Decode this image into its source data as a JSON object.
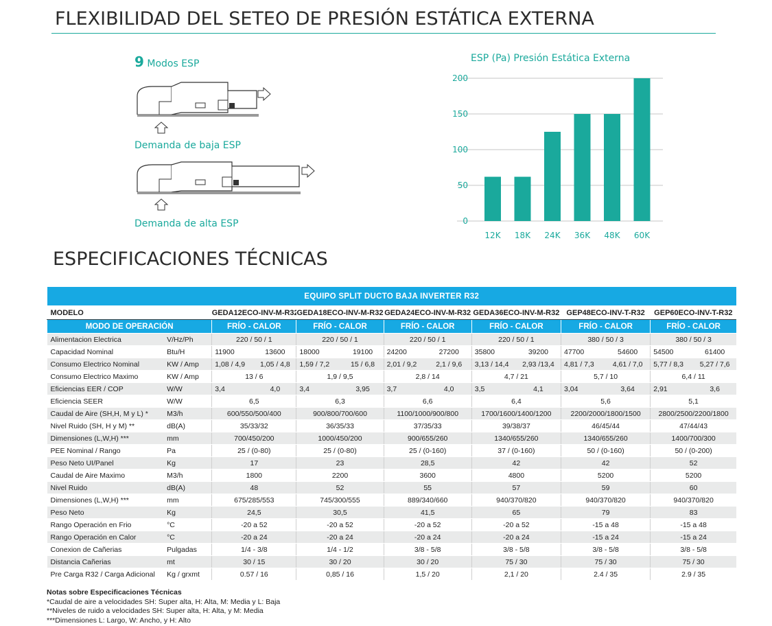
{
  "section1": {
    "title": "FLEXIBILIDAD DEL SETEO DE PRESIÓN ESTÁTICA EXTERNA"
  },
  "esp_modes": {
    "number": "9",
    "label": "Modos ESP"
  },
  "diagrams": {
    "low_caption": "Demanda de baja ESP",
    "high_caption": "Demanda de alta ESP",
    "airflow_icon": "arrow-outline-icon"
  },
  "colors": {
    "teal": "#1aa99c",
    "blue": "#17a9e3",
    "row_gray": "#e9eaea"
  },
  "chart_data": {
    "type": "bar",
    "title": "ESP (Pa)   Presión Estática Externa",
    "categories": [
      "12K",
      "18K",
      "24K",
      "36K",
      "48K",
      "60K"
    ],
    "values": [
      62,
      62,
      125,
      150,
      150,
      200
    ],
    "ylim": [
      0,
      200
    ],
    "yticks": [
      "0",
      "50",
      "100",
      "150",
      "200"
    ],
    "grid": true,
    "color": "#1aa99c"
  },
  "section2": {
    "title": "ESPECIFICACIONES TÉCNICAS"
  },
  "spec": {
    "table_title": "EQUIPO SPLIT DUCTO BAJA INVERTER R32",
    "model_label": "MODELO",
    "mode_label": "MODO DE OPERACIÓN",
    "models": [
      "GEDA12ECO-INV-M-R32",
      "GEDA18ECO-INV-M-R32",
      "GEDA24ECO-INV-M-R32",
      "GEDA36ECO-INV-M-R32",
      "GEP48ECO-INV-T-R32",
      "GEP60ECO-INV-T-R32"
    ],
    "modes": [
      "FRÍO  -  CALOR",
      "FRÍO  -  CALOR",
      "FRÍO  -  CALOR",
      "FRÍO  -  CALOR",
      "FRÍO  -  CALOR",
      "FRÍO  -  CALOR"
    ],
    "rows": [
      {
        "label": "Alimentacion Electrica",
        "unit": "V/Hz/Ph",
        "vals": [
          "220 / 50 / 1",
          "220 / 50 / 1",
          "220 / 50 / 1",
          "220 / 50 / 1",
          "380 / 50 / 3",
          "380 / 50 / 3"
        ]
      },
      {
        "label": "Capacidad Nominal",
        "unit": "Btu/H",
        "vals": [
          [
            "11900",
            "13600"
          ],
          [
            "18000",
            "19100"
          ],
          [
            "24200",
            "27200"
          ],
          [
            "35800",
            "39200"
          ],
          [
            "47700",
            "54600"
          ],
          [
            "54500",
            "61400"
          ]
        ]
      },
      {
        "label": "Consumo Electrico Nominal",
        "unit": "KW / Amp",
        "vals": [
          [
            "1,08 / 4,9",
            "1,05 / 4,8"
          ],
          [
            "1,59 / 7,2",
            "15 / 6,8"
          ],
          [
            "2,01 / 9,2",
            "2,1 / 9,6"
          ],
          [
            "3,13 / 14,4",
            "2,93 /13,4"
          ],
          [
            "4,81 / 7,3",
            "4,61 / 7,0"
          ],
          [
            "5,77 / 8,3",
            "5,27 / 7,6"
          ]
        ]
      },
      {
        "label": "Consumo Electrico Maximo",
        "unit": "KW / Amp",
        "vals": [
          "13 / 6",
          "1,9 / 9,5",
          "2,8 / 14",
          "4,7 / 21",
          "5,7 / 10",
          "6,4 / 11"
        ]
      },
      {
        "label": "Eficiencias EER / COP",
        "unit": "W/W",
        "vals": [
          [
            "3,4",
            "4,0"
          ],
          [
            "3,4",
            "3,95"
          ],
          [
            "3,7",
            "4,0"
          ],
          [
            "3,5",
            "4,1"
          ],
          [
            "3,04",
            "3,64"
          ],
          [
            "2,91",
            "3,6"
          ]
        ]
      },
      {
        "label": "Eficiencia SEER",
        "unit": "W/W",
        "vals": [
          "6,5",
          "6,3",
          "6,6",
          "6,4",
          "5,6",
          "5,1"
        ]
      },
      {
        "label": "Caudal de Aire (SH,H, M y L) *",
        "unit": "M3/h",
        "vals": [
          "600/550/500/400",
          "900/800/700/600",
          "1100/1000/900/800",
          "1700/1600/1400/1200",
          "2200/2000/1800/1500",
          "2800/2500/2200/1800"
        ]
      },
      {
        "label": "Nivel Ruido (SH, H y M) **",
        "unit": "dB(A)",
        "vals": [
          "35/33/32",
          "36/35/33",
          "37/35/33",
          "39/38/37",
          "46/45/44",
          "47/44/43"
        ]
      },
      {
        "label": "Dimensiones (L,W,H) ***",
        "unit": "mm",
        "vals": [
          "700/450/200",
          "1000/450/200",
          "900/655/260",
          "1340/655/260",
          "1340/655/260",
          "1400/700/300"
        ]
      },
      {
        "label": "PEE Nominal / Rango",
        "unit": "Pa",
        "vals": [
          "25 / (0-80)",
          "25 / (0-80)",
          "25 / (0-160)",
          "37 / (0-160)",
          "50 / (0-160)",
          "50 / (0-200)"
        ]
      },
      {
        "label": "Peso Neto UI/Panel",
        "unit": "Kg",
        "vals": [
          "17",
          "23",
          "28,5",
          "42",
          "42",
          "52"
        ]
      },
      {
        "label": "Caudal de Aire Maximo",
        "unit": "M3/h",
        "vals": [
          "1800",
          "2200",
          "3600",
          "4800",
          "5200",
          "5200"
        ]
      },
      {
        "label": "Nivel Ruido",
        "unit": "dB(A)",
        "vals": [
          "48",
          "52",
          "55",
          "57",
          "59",
          "60"
        ]
      },
      {
        "label": "Dimensiones (L,W,H) ***",
        "unit": "mm",
        "vals": [
          "675/285/553",
          "745/300/555",
          "889/340/660",
          "940/370/820",
          "940/370/820",
          "940/370/820"
        ]
      },
      {
        "label": "Peso Neto",
        "unit": "Kg",
        "vals": [
          "24,5",
          "30,5",
          "41,5",
          "65",
          "79",
          "83"
        ]
      },
      {
        "label": "Rango Operación en Frio",
        "unit": "°C",
        "vals": [
          "-20 a 52",
          "-20 a 52",
          "-20 a 52",
          "-20 a 52",
          "-15 a 48",
          "-15 a 48"
        ]
      },
      {
        "label": "Rango Operación en Calor",
        "unit": "°C",
        "vals": [
          "-20 a 24",
          "-20 a 24",
          "-20 a 24",
          "-20 a 24",
          "-15 a 24",
          "-15 a 24"
        ]
      },
      {
        "label": "Conexion de Cañerias",
        "unit": "Pulgadas",
        "vals": [
          "1/4  -  3/8",
          "1/4  -  1/2",
          "3/8  -  5/8",
          "3/8  -  5/8",
          "3/8  -  5/8",
          "3/8  -  5/8"
        ]
      },
      {
        "label": "Distancia Cañerias",
        "unit": "mt",
        "vals": [
          "30 / 15",
          "30 / 20",
          "30 / 20",
          "75 / 30",
          "75 / 30",
          "75 / 30"
        ]
      },
      {
        "label": "Pre Carga R32 / Carga Adicional",
        "unit": "Kg / grxmt",
        "vals": [
          "0.57 / 16",
          "0,85 / 16",
          "1,5 / 20",
          "2,1 / 20",
          "2.4 / 35",
          "2.9 / 35"
        ]
      }
    ]
  },
  "notes": {
    "title": "Notas sobre Especificaciones Técnicas",
    "lines": [
      "*Caudal de aire a velocidades SH: Super alta, H: Alta, M: Media y L: Baja",
      "**Niveles de ruido a velocidades SH: Super alta, H: Alta, y M: Media",
      "***Dimensiones L: Largo, W: Ancho, y H: Alto"
    ]
  }
}
